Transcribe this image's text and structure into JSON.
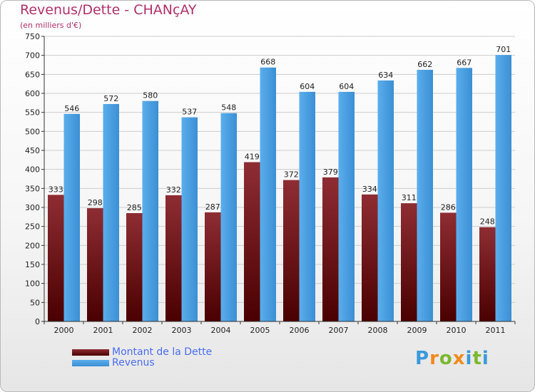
{
  "title": "Revenus/Dette - CHANçAY",
  "subtitle": "(en milliers d'€)",
  "logo": {
    "text": "Proxiti",
    "letter_colors": [
      "#3a9ad9",
      "#f08a1e",
      "#7cb82f",
      "#f08a1e",
      "#3a9ad9",
      "#7cb82f",
      "#3a9ad9"
    ]
  },
  "colors": {
    "dette": "#7a1e24",
    "revenus": "#4c9ee0",
    "axis_text": "#222222",
    "grid": "#cccccc"
  },
  "legend": [
    {
      "label": "Montant de la Dette",
      "color": "#6b0f14"
    },
    {
      "label": "Revenus",
      "color": "#4c9ee0"
    }
  ],
  "chart_data": {
    "type": "bar",
    "categories": [
      "2000",
      "2001",
      "2002",
      "2003",
      "2004",
      "2005",
      "2006",
      "2007",
      "2008",
      "2009",
      "2010",
      "2011"
    ],
    "series": [
      {
        "name": "Montant de la Dette",
        "values": [
          333,
          298,
          285,
          332,
          287,
          419,
          372,
          379,
          334,
          311,
          286,
          248
        ]
      },
      {
        "name": "Revenus",
        "values": [
          546,
          572,
          580,
          537,
          548,
          668,
          604,
          604,
          634,
          662,
          667,
          701
        ]
      }
    ],
    "ylim": [
      0,
      750
    ],
    "yticks": [
      0,
      50,
      100,
      150,
      200,
      250,
      300,
      350,
      400,
      450,
      500,
      550,
      600,
      650,
      700,
      750
    ],
    "grid": true,
    "legend_position": "bottom-left"
  }
}
